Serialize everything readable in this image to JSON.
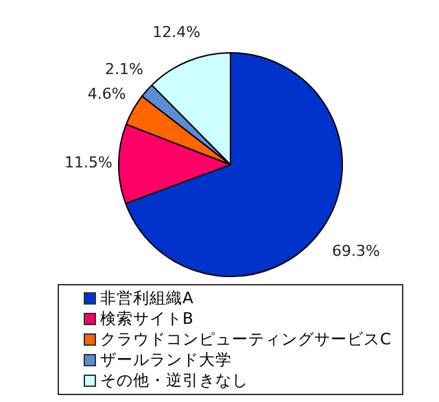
{
  "chart_data": {
    "type": "pie",
    "categories": [
      "非営利組織A",
      "検索サイトB",
      "クラウドコンピューティングサービスC",
      "ザールランド大学",
      "その他・逆引きなし"
    ],
    "values": [
      69.3,
      11.5,
      4.6,
      2.1,
      12.4
    ],
    "colors": [
      "#0033cc",
      "#ff0066",
      "#ff6600",
      "#5b8ed6",
      "#ccffff"
    ],
    "value_labels": [
      "69.3%",
      "11.5%",
      "4.6%",
      "2.1%",
      "12.4%"
    ],
    "legend": "bottom"
  }
}
